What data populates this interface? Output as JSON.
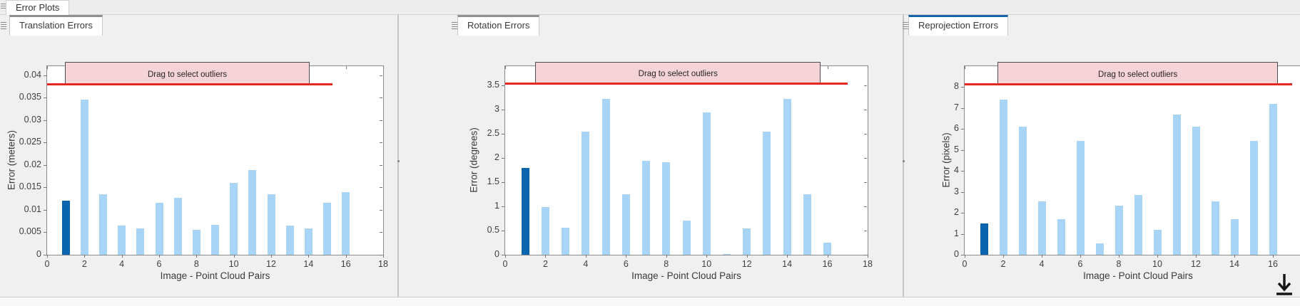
{
  "window": {
    "figure_tab": "Error Plots",
    "banner_label": "Drag to select outliers",
    "colors": {
      "bar_light": "#a8d5f6",
      "bar_dark": "#0a65ae",
      "threshold_red": "#e22820",
      "banner_fill": "#f5d3d6",
      "tab_top_inactive": "#8f8f8f",
      "tab_top_active": "#1565a8",
      "panel_bg": "#f0f0f0"
    },
    "icons": {
      "corner": "down-arrow-underline-icon",
      "tab_handle": "drag-grip-icon",
      "splitter": "splitter-handle-icon"
    }
  },
  "panels": [
    {
      "title": "Translation Errors",
      "active": false,
      "ylabel": "Error (meters)",
      "xlabel": "Image - Point Cloud Pairs",
      "ymax": 0.042,
      "threshold": 0.038,
      "ytick_values": [
        0,
        0.005,
        0.01,
        0.015,
        0.02,
        0.025,
        0.03,
        0.035,
        0.04
      ],
      "ytick_labels": [
        "0",
        "0.005",
        "0.01",
        "0.015",
        "0.02",
        "0.025",
        "0.03",
        "0.035",
        "0.04"
      ],
      "xtick_values": [
        0,
        2,
        4,
        6,
        8,
        10,
        12,
        14,
        16,
        18
      ],
      "xtick_labels": [
        "0",
        "2",
        "4",
        "6",
        "8",
        "10",
        "12",
        "14",
        "16",
        "18"
      ],
      "values": [
        0.012,
        0.0345,
        0.0135,
        0.0065,
        0.0058,
        0.0115,
        0.0127,
        0.0055,
        0.0067,
        0.016,
        0.0188,
        0.0135,
        0.0065,
        0.0058,
        0.0115,
        0.014
      ],
      "highlighted_bar": 1
    },
    {
      "title": "Rotation Errors",
      "active": false,
      "ylabel": "Error (degrees)",
      "xlabel": "Image - Point Cloud Pairs",
      "ymax": 3.9,
      "threshold": 3.55,
      "ytick_values": [
        0,
        0.5,
        1,
        1.5,
        2,
        2.5,
        3,
        3.5
      ],
      "ytick_labels": [
        "0",
        "0.5",
        "1",
        "1.5",
        "2",
        "2.5",
        "3",
        "3.5"
      ],
      "xtick_values": [
        0,
        2,
        4,
        6,
        8,
        10,
        12,
        14,
        16,
        18
      ],
      "xtick_labels": [
        "0",
        "2",
        "4",
        "6",
        "8",
        "10",
        "12",
        "14",
        "16",
        "18"
      ],
      "values": [
        1.8,
        0.98,
        0.56,
        2.55,
        3.22,
        1.25,
        1.95,
        1.92,
        0.7,
        2.95,
        0.02,
        0.55,
        2.55,
        3.22,
        1.25,
        0.25
      ],
      "highlighted_bar": 1
    },
    {
      "title": "Reprojection Errors",
      "active": true,
      "ylabel": "Error (pixels)",
      "xlabel": "Image - Point Cloud Pairs",
      "ymax": 9.0,
      "threshold": 8.15,
      "ytick_values": [
        0,
        1,
        2,
        3,
        4,
        5,
        6,
        7,
        8
      ],
      "ytick_labels": [
        "0",
        "1",
        "2",
        "3",
        "4",
        "5",
        "6",
        "7",
        "8"
      ],
      "xtick_values": [
        0,
        2,
        4,
        6,
        8,
        10,
        12,
        14,
        16,
        18
      ],
      "xtick_labels": [
        "0",
        "2",
        "4",
        "6",
        "8",
        "10",
        "12",
        "14",
        "16",
        "18"
      ],
      "values": [
        1.5,
        7.4,
        6.1,
        2.55,
        1.7,
        5.45,
        0.55,
        2.35,
        2.85,
        1.2,
        6.7,
        6.1,
        2.55,
        1.7,
        5.45,
        7.2
      ],
      "highlighted_bar": 1
    }
  ],
  "chart_data": [
    {
      "type": "bar",
      "title": "Translation Errors",
      "categories": [
        1,
        2,
        3,
        4,
        5,
        6,
        7,
        8,
        9,
        10,
        11,
        12,
        13,
        14,
        15,
        16
      ],
      "values": [
        0.012,
        0.0345,
        0.0135,
        0.0065,
        0.0058,
        0.0115,
        0.0127,
        0.0055,
        0.0067,
        0.016,
        0.0188,
        0.0135,
        0.0065,
        0.0058,
        0.0115,
        0.014
      ],
      "xlabel": "Image - Point Cloud Pairs",
      "ylabel": "Error (meters)",
      "xlim": [
        0,
        18
      ],
      "ylim": [
        0,
        0.042
      ],
      "threshold_line": 0.038,
      "annotation": "Drag to select outliers",
      "grid": false,
      "legend": false,
      "highlighted_bar_index": 1
    },
    {
      "type": "bar",
      "title": "Rotation Errors",
      "categories": [
        1,
        2,
        3,
        4,
        5,
        6,
        7,
        8,
        9,
        10,
        11,
        12,
        13,
        14,
        15,
        16
      ],
      "values": [
        1.8,
        0.98,
        0.56,
        2.55,
        3.22,
        1.25,
        1.95,
        1.92,
        0.7,
        2.95,
        0.02,
        0.55,
        2.55,
        3.22,
        1.25,
        0.25
      ],
      "xlabel": "Image - Point Cloud Pairs",
      "ylabel": "Error (degrees)",
      "xlim": [
        0,
        18
      ],
      "ylim": [
        0,
        3.9
      ],
      "threshold_line": 3.55,
      "annotation": "Drag to select outliers",
      "grid": false,
      "legend": false,
      "highlighted_bar_index": 1
    },
    {
      "type": "bar",
      "title": "Reprojection Errors",
      "categories": [
        1,
        2,
        3,
        4,
        5,
        6,
        7,
        8,
        9,
        10,
        11,
        12,
        13,
        14,
        15,
        16
      ],
      "values": [
        1.5,
        7.4,
        6.1,
        2.55,
        1.7,
        5.45,
        0.55,
        2.35,
        2.85,
        1.2,
        6.7,
        6.1,
        2.55,
        1.7,
        5.45,
        7.2
      ],
      "xlabel": "Image - Point Cloud Pairs",
      "ylabel": "Error (pixels)",
      "xlim": [
        0,
        18
      ],
      "ylim": [
        0,
        9.0
      ],
      "threshold_line": 8.15,
      "annotation": "Drag to select outliers",
      "grid": false,
      "legend": false,
      "highlighted_bar_index": 1
    }
  ]
}
